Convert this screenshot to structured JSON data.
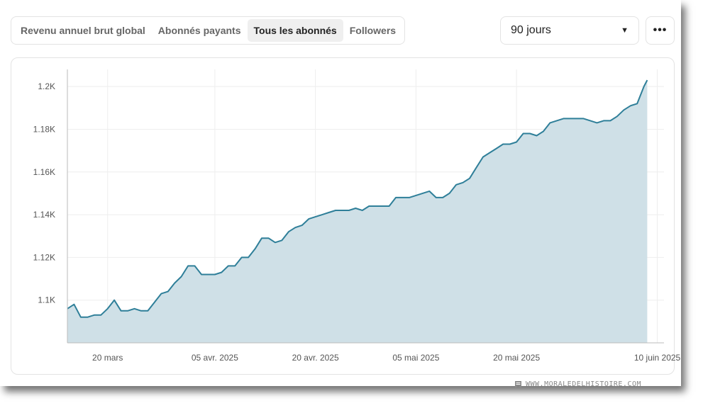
{
  "tabs": [
    {
      "label": "Revenu annuel brut global",
      "active": false
    },
    {
      "label": "Abonnés payants",
      "active": false
    },
    {
      "label": "Tous les abonnés",
      "active": true
    },
    {
      "label": "Followers",
      "active": false
    }
  ],
  "period_select": {
    "value": "90 jours",
    "icon": "caret-down-icon"
  },
  "more_button": {
    "label": "•••",
    "icon": "ellipsis-icon"
  },
  "watermark": "WWW.MORALEDELHISTOIRE.COM",
  "colors": {
    "line": "#2f7f99",
    "area": "#cfe0e7",
    "grid": "#eeeeee",
    "axis": "#bbbbbb"
  },
  "chart_data": {
    "type": "area",
    "title": "",
    "xlabel": "",
    "ylabel": "",
    "x_ticks": [
      {
        "label": "20 mars",
        "day": 20
      },
      {
        "label": "05 avr. 2025",
        "day": 36
      },
      {
        "label": "20 avr. 2025",
        "day": 51
      },
      {
        "label": "05 mai 2025",
        "day": 66
      },
      {
        "label": "20 mai 2025",
        "day": 81
      },
      {
        "label": "10 juin 2025",
        "day": 102
      }
    ],
    "y_ticks": [
      {
        "label": "1.1K",
        "value": 1100
      },
      {
        "label": "1.12K",
        "value": 1120
      },
      {
        "label": "1.14K",
        "value": 1140
      },
      {
        "label": "1.16K",
        "value": 1160
      },
      {
        "label": "1.18K",
        "value": 1180
      },
      {
        "label": "1.2K",
        "value": 1200
      }
    ],
    "xlim": [
      14,
      103
    ],
    "ylim": [
      1080,
      1208
    ],
    "grid": true,
    "series": [
      {
        "points": [
          [
            14,
            1096
          ],
          [
            15,
            1098
          ],
          [
            16,
            1092
          ],
          [
            17,
            1092
          ],
          [
            18,
            1093
          ],
          [
            19,
            1093
          ],
          [
            20,
            1096
          ],
          [
            21,
            1100
          ],
          [
            22,
            1095
          ],
          [
            23,
            1095
          ],
          [
            24,
            1096
          ],
          [
            25,
            1095
          ],
          [
            26,
            1095
          ],
          [
            27,
            1099
          ],
          [
            28,
            1103
          ],
          [
            29,
            1104
          ],
          [
            30,
            1108
          ],
          [
            31,
            1111
          ],
          [
            32,
            1116
          ],
          [
            33,
            1116
          ],
          [
            34,
            1112
          ],
          [
            35,
            1112
          ],
          [
            36,
            1112
          ],
          [
            37,
            1113
          ],
          [
            38,
            1116
          ],
          [
            39,
            1116
          ],
          [
            40,
            1120
          ],
          [
            41,
            1120
          ],
          [
            42,
            1124
          ],
          [
            43,
            1129
          ],
          [
            44,
            1129
          ],
          [
            45,
            1127
          ],
          [
            46,
            1128
          ],
          [
            47,
            1132
          ],
          [
            48,
            1134
          ],
          [
            49,
            1135
          ],
          [
            50,
            1138
          ],
          [
            51,
            1139
          ],
          [
            52,
            1140
          ],
          [
            53,
            1141
          ],
          [
            54,
            1142
          ],
          [
            55,
            1142
          ],
          [
            56,
            1142
          ],
          [
            57,
            1143
          ],
          [
            58,
            1142
          ],
          [
            59,
            1144
          ],
          [
            60,
            1144
          ],
          [
            61,
            1144
          ],
          [
            62,
            1144
          ],
          [
            63,
            1148
          ],
          [
            64,
            1148
          ],
          [
            65,
            1148
          ],
          [
            66,
            1149
          ],
          [
            67,
            1150
          ],
          [
            68,
            1151
          ],
          [
            69,
            1148
          ],
          [
            70,
            1148
          ],
          [
            71,
            1150
          ],
          [
            72,
            1154
          ],
          [
            73,
            1155
          ],
          [
            74,
            1157
          ],
          [
            75,
            1162
          ],
          [
            76,
            1167
          ],
          [
            77,
            1169
          ],
          [
            78,
            1171
          ],
          [
            79,
            1173
          ],
          [
            80,
            1173
          ],
          [
            81,
            1174
          ],
          [
            82,
            1178
          ],
          [
            83,
            1178
          ],
          [
            84,
            1177
          ],
          [
            85,
            1179
          ],
          [
            86,
            1183
          ],
          [
            87,
            1184
          ],
          [
            88,
            1185
          ],
          [
            89,
            1185
          ],
          [
            90,
            1185
          ],
          [
            91,
            1185
          ],
          [
            92,
            1184
          ],
          [
            93,
            1183
          ],
          [
            94,
            1184
          ],
          [
            95,
            1184
          ],
          [
            96,
            1186
          ],
          [
            97,
            1189
          ],
          [
            98,
            1191
          ],
          [
            99,
            1192
          ],
          [
            100,
            1200
          ],
          [
            100.5,
            1203
          ]
        ]
      }
    ]
  }
}
